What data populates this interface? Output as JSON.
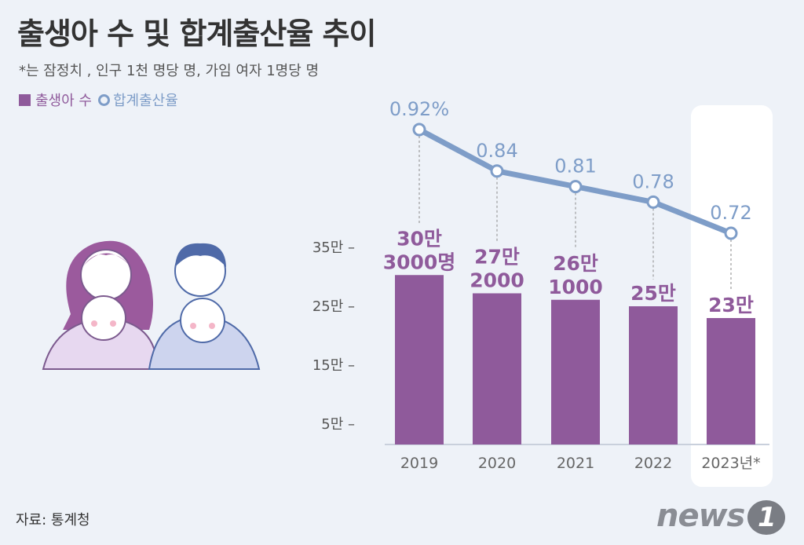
{
  "title": "출생아 수 및 합계출산율 추이",
  "subtitle": "*는 잠정치 , 인구 1천 명당 명, 가임 여자 1명당 명",
  "legend": {
    "births": "출생아 수",
    "tfr": "합계출산율"
  },
  "source": "자료: 통계청",
  "logo": {
    "text": "news",
    "badge": "1"
  },
  "colors": {
    "bar": "#8f5a9b",
    "line": "#7e9dc8",
    "highlight": "#ffffff",
    "text": "#333333"
  },
  "chart_data": {
    "type": "bar",
    "categories": [
      "2019",
      "2020",
      "2021",
      "2022",
      "2023년*"
    ],
    "series": [
      {
        "name": "출생아 수",
        "type": "bar",
        "values": [
          303000,
          272000,
          261000,
          250000,
          230000
        ],
        "labels": [
          [
            "30만",
            "3000명"
          ],
          [
            "27만",
            "2000"
          ],
          [
            "26만",
            "1000"
          ],
          [
            "25만"
          ],
          [
            "23만"
          ]
        ]
      },
      {
        "name": "합계출산율",
        "type": "line",
        "values": [
          0.92,
          0.84,
          0.81,
          0.78,
          0.72
        ],
        "labels": [
          "0.92%",
          "0.84",
          "0.81",
          "0.78",
          "0.72"
        ]
      }
    ],
    "yticks": [
      "35만",
      "25만",
      "15만",
      "5만"
    ],
    "ytick_values": [
      350000,
      250000,
      150000,
      50000
    ],
    "highlight_category": "2023년*"
  }
}
